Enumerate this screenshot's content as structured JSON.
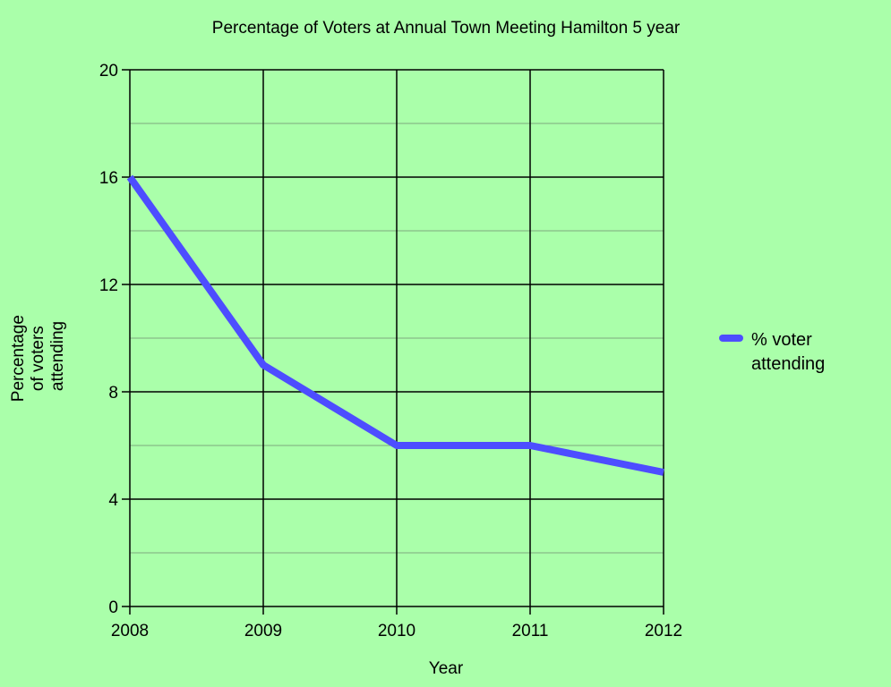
{
  "chart_data": {
    "type": "line",
    "title": "Percentage of Voters at Annual Town Meeting Hamilton 5 year",
    "xlabel": "Year",
    "ylabel_lines": [
      "Percentage",
      "of voters",
      "attending"
    ],
    "x": [
      "2008",
      "2009",
      "2010",
      "2011",
      "2012"
    ],
    "ylim": [
      0,
      20
    ],
    "y_major_ticks": [
      0,
      4,
      8,
      12,
      16,
      20
    ],
    "y_minor_gridlines": [
      2,
      6,
      10,
      14,
      18
    ],
    "grid": true,
    "legend_position": "right",
    "series": [
      {
        "name_lines": [
          "% voter",
          "attending"
        ],
        "values": [
          16,
          9,
          6,
          6,
          5
        ],
        "color": "#4d4dff"
      }
    ]
  },
  "colors": {
    "background": "#aaffaa",
    "major_grid": "#000000",
    "minor_grid": "#7faa7f"
  }
}
